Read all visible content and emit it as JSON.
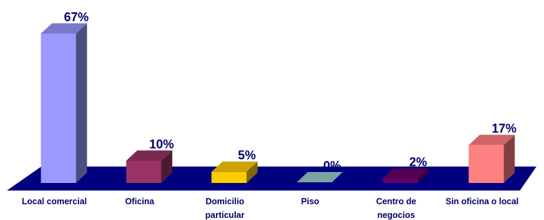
{
  "chart_data": {
    "type": "bar",
    "title": "",
    "xlabel": "",
    "ylabel": "",
    "ylim": [
      0,
      67
    ],
    "grid": false,
    "legend": "none",
    "categories": [
      [
        "Local comercial"
      ],
      [
        "Oficina"
      ],
      [
        "Domicilio",
        "particular"
      ],
      [
        "Piso"
      ],
      [
        "Centro de",
        "negocios"
      ],
      [
        "Sin oficina o local"
      ]
    ],
    "values": [
      67,
      10,
      5,
      0,
      2,
      17
    ],
    "value_labels": [
      "67%",
      "10%",
      "5%",
      "0%",
      "2%",
      "17%"
    ],
    "colors": {
      "floor": "#000080",
      "bars": [
        "#9999ff",
        "#993366",
        "#ffcc00",
        "#99cccc",
        "#660066",
        "#ff8080"
      ],
      "bar_tops": [
        "#7a7acc",
        "#7a2952",
        "#cca300",
        "#7aa3a3",
        "#520052",
        "#cc6666"
      ],
      "bar_sides": [
        "#4d4d80",
        "#4d1a33",
        "#806600",
        "#4d6666",
        "#330033",
        "#804040"
      ]
    }
  }
}
